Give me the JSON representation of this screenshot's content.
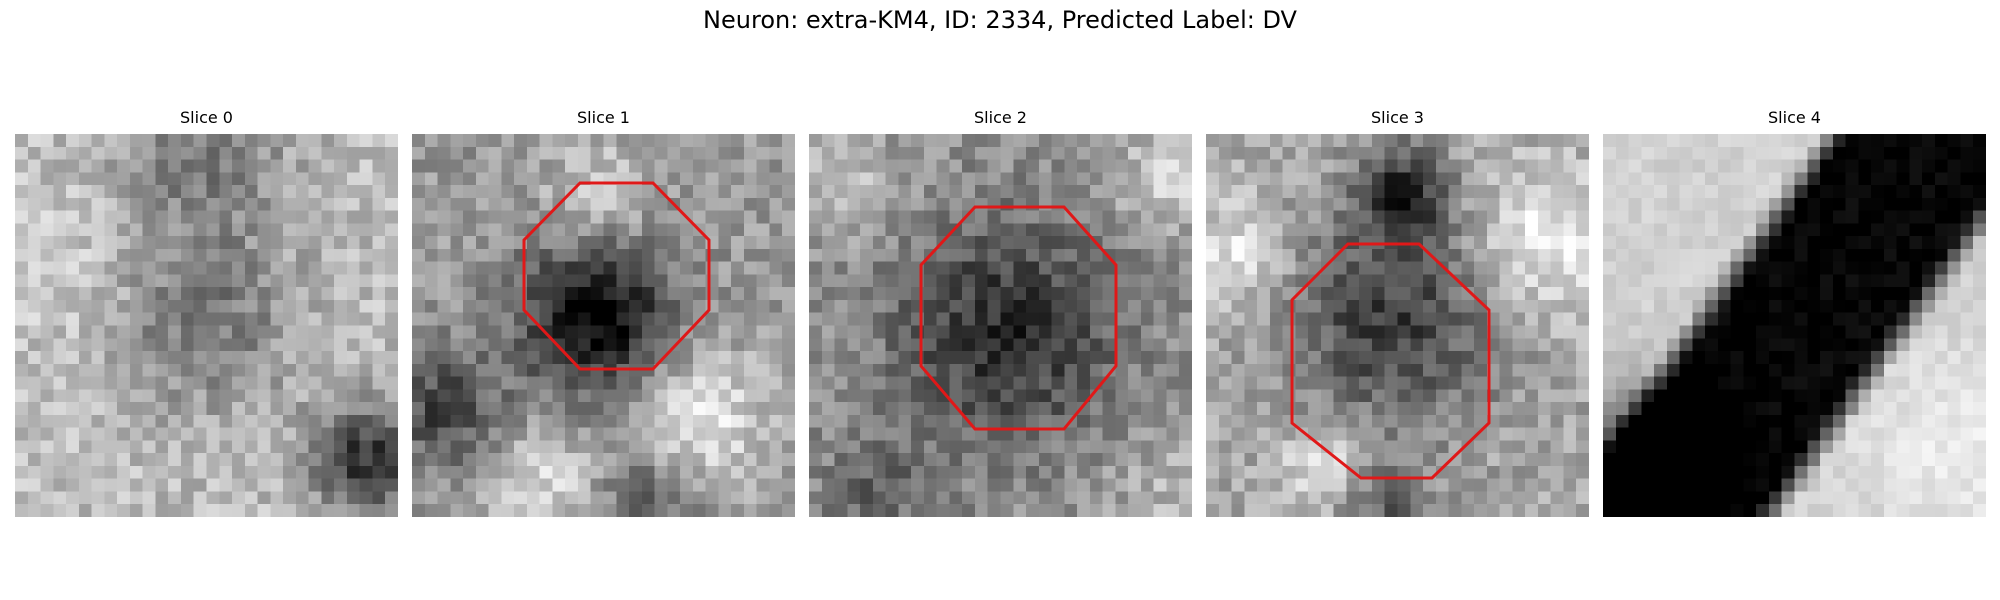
{
  "figure": {
    "title": "Neuron: extra-KM4, ID: 2334, Predicted Label: DV"
  },
  "panels": [
    {
      "title": "Slice 0",
      "roi_outline_shown": false,
      "outline_color": "#e01818"
    },
    {
      "title": "Slice 1",
      "roi_outline_shown": true,
      "outline_color": "#e01818"
    },
    {
      "title": "Slice 2",
      "roi_outline_shown": true,
      "outline_color": "#e01818"
    },
    {
      "title": "Slice 3",
      "roi_outline_shown": true,
      "outline_color": "#e01818"
    },
    {
      "title": "Slice 4",
      "roi_outline_shown": false,
      "outline_color": "#e01818"
    }
  ],
  "colormap": "grayscale"
}
